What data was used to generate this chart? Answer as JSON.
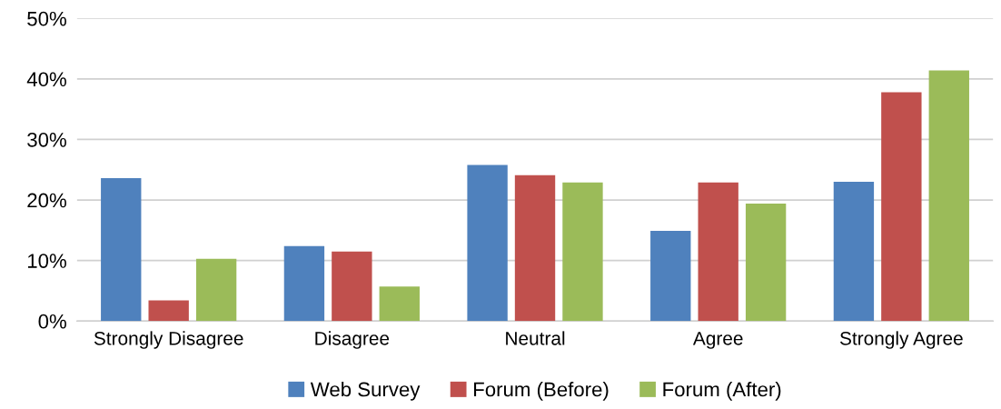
{
  "chart_data": {
    "type": "bar",
    "categories": [
      "Strongly Disagree",
      "Disagree",
      "Neutral",
      "Agree",
      "Strongly Agree"
    ],
    "series": [
      {
        "name": "Web Survey",
        "color": "#4f81bd",
        "values": [
          23.6,
          12.4,
          25.8,
          14.9,
          23.0
        ]
      },
      {
        "name": "Forum (Before)",
        "color": "#c0504d",
        "values": [
          3.4,
          11.5,
          24.1,
          22.9,
          37.8
        ]
      },
      {
        "name": "Forum (After)",
        "color": "#9bbb59",
        "values": [
          10.3,
          5.7,
          22.9,
          19.4,
          41.4
        ]
      }
    ],
    "ylim": [
      0,
      50
    ],
    "yticks": [
      {
        "value": 0,
        "label": "0%"
      },
      {
        "value": 10,
        "label": "10%"
      },
      {
        "value": 20,
        "label": "20%"
      },
      {
        "value": 30,
        "label": "30%"
      },
      {
        "value": 40,
        "label": "40%"
      },
      {
        "value": 50,
        "label": "50%"
      }
    ],
    "grid": "y",
    "legend": "bottom"
  }
}
